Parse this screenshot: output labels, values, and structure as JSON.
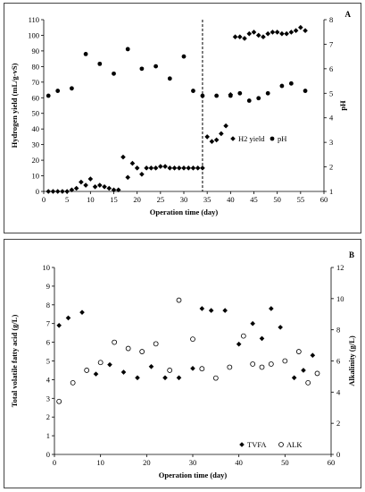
{
  "chart_data": [
    {
      "panel_label": "A",
      "type": "scatter",
      "xlabel": "Operation time (day)",
      "ylabel": "Hydrogen yield (mL/g-vS)",
      "y2label": "pH",
      "xlim": [
        0,
        60
      ],
      "ylim": [
        0,
        110
      ],
      "y2lim": [
        1,
        8
      ],
      "xticks": [
        "0",
        "5",
        "10",
        "15",
        "20",
        "25",
        "30",
        "35",
        "40",
        "45",
        "50",
        "55",
        "60"
      ],
      "yticks": [
        "0",
        "10",
        "20",
        "30",
        "40",
        "50",
        "60",
        "70",
        "80",
        "90",
        "100",
        "110"
      ],
      "y2ticks": [
        "1",
        "2",
        "3",
        "4",
        "5",
        "6",
        "7",
        "8"
      ],
      "vline_x": 34,
      "legend": [
        "H2 yield",
        "pH"
      ],
      "legend_position": "right-middle",
      "series": [
        {
          "name": "H2 yield",
          "axis": "left",
          "marker": "diamond-filled",
          "points": [
            [
              1,
              0
            ],
            [
              2,
              0
            ],
            [
              3,
              0
            ],
            [
              4,
              0
            ],
            [
              5,
              0
            ],
            [
              6,
              1
            ],
            [
              7,
              2
            ],
            [
              8,
              6
            ],
            [
              9,
              4
            ],
            [
              10,
              8
            ],
            [
              11,
              3
            ],
            [
              12,
              4
            ],
            [
              13,
              3
            ],
            [
              14,
              2
            ],
            [
              15,
              1
            ],
            [
              16,
              1
            ],
            [
              17,
              22
            ],
            [
              18,
              9
            ],
            [
              19,
              18
            ],
            [
              20,
              15
            ],
            [
              21,
              11
            ],
            [
              22,
              15
            ],
            [
              23,
              15
            ],
            [
              24,
              15
            ],
            [
              25,
              16
            ],
            [
              26,
              16
            ],
            [
              27,
              15
            ],
            [
              28,
              15
            ],
            [
              29,
              15
            ],
            [
              30,
              15
            ],
            [
              31,
              15
            ],
            [
              32,
              15
            ],
            [
              33,
              15
            ],
            [
              34,
              15
            ],
            [
              35,
              35
            ],
            [
              36,
              32
            ],
            [
              37,
              33
            ],
            [
              38,
              37
            ],
            [
              39,
              42
            ],
            [
              40,
              62
            ],
            [
              41,
              99
            ],
            [
              42,
              99
            ],
            [
              43,
              98
            ],
            [
              44,
              101
            ],
            [
              45,
              102
            ],
            [
              46,
              100
            ],
            [
              47,
              99
            ],
            [
              48,
              101
            ],
            [
              49,
              102
            ],
            [
              50,
              102
            ],
            [
              51,
              101
            ],
            [
              52,
              101
            ],
            [
              53,
              102
            ],
            [
              54,
              103
            ],
            [
              55,
              105
            ],
            [
              56,
              103
            ]
          ]
        },
        {
          "name": "pH",
          "axis": "right",
          "marker": "circle-filled",
          "points": [
            [
              1,
              4.9
            ],
            [
              3,
              5.1
            ],
            [
              6,
              5.2
            ],
            [
              9,
              6.6
            ],
            [
              12,
              6.2
            ],
            [
              15,
              5.8
            ],
            [
              18,
              6.8
            ],
            [
              21,
              6.0
            ],
            [
              24,
              6.1
            ],
            [
              27,
              5.6
            ],
            [
              30,
              6.5
            ],
            [
              32,
              5.1
            ],
            [
              34,
              4.9
            ],
            [
              37,
              4.9
            ],
            [
              40,
              4.9
            ],
            [
              42,
              5.0
            ],
            [
              44,
              4.7
            ],
            [
              46,
              4.8
            ],
            [
              48,
              5.0
            ],
            [
              51,
              5.3
            ],
            [
              53,
              5.4
            ],
            [
              56,
              5.1
            ]
          ]
        }
      ]
    },
    {
      "panel_label": "B",
      "type": "scatter",
      "xlabel": "Operation time (day)",
      "ylabel": "Total volatile fatty acid (g/L)",
      "y2label": "Alkalinity (g/L)",
      "xlim": [
        0,
        60
      ],
      "ylim": [
        0,
        10
      ],
      "y2lim": [
        0,
        12
      ],
      "xticks": [
        "0",
        "10",
        "20",
        "30",
        "40",
        "50",
        "60"
      ],
      "yticks": [
        "0",
        "1",
        "2",
        "3",
        "4",
        "5",
        "6",
        "7",
        "8",
        "9",
        "10"
      ],
      "y2ticks": [
        "0",
        "2",
        "4",
        "6",
        "8",
        "10",
        "12"
      ],
      "legend": [
        "TVFA",
        "ALK"
      ],
      "legend_position": "bottom-right",
      "series": [
        {
          "name": "TVFA",
          "axis": "left",
          "marker": "diamond-filled",
          "points": [
            [
              1,
              6.9
            ],
            [
              3,
              7.3
            ],
            [
              6,
              7.6
            ],
            [
              9,
              4.3
            ],
            [
              12,
              4.8
            ],
            [
              15,
              4.4
            ],
            [
              18,
              4.1
            ],
            [
              21,
              4.7
            ],
            [
              24,
              4.1
            ],
            [
              27,
              4.1
            ],
            [
              30,
              4.6
            ],
            [
              32,
              7.8
            ],
            [
              34,
              7.7
            ],
            [
              37,
              7.7
            ],
            [
              40,
              5.9
            ],
            [
              43,
              7.0
            ],
            [
              45,
              6.2
            ],
            [
              47,
              7.8
            ],
            [
              49,
              6.8
            ],
            [
              52,
              4.1
            ],
            [
              54,
              4.5
            ],
            [
              56,
              5.3
            ]
          ]
        },
        {
          "name": "ALK",
          "axis": "right",
          "marker": "circle-open",
          "points": [
            [
              1,
              3.4
            ],
            [
              4,
              4.6
            ],
            [
              7,
              5.4
            ],
            [
              10,
              5.9
            ],
            [
              13,
              7.2
            ],
            [
              16,
              6.8
            ],
            [
              19,
              6.6
            ],
            [
              22,
              7.1
            ],
            [
              25,
              5.4
            ],
            [
              27,
              9.9
            ],
            [
              30,
              7.4
            ],
            [
              32,
              5.5
            ],
            [
              35,
              4.9
            ],
            [
              38,
              5.6
            ],
            [
              41,
              7.6
            ],
            [
              43,
              5.8
            ],
            [
              45,
              5.6
            ],
            [
              47,
              5.8
            ],
            [
              50,
              6.0
            ],
            [
              53,
              6.6
            ],
            [
              55,
              4.6
            ],
            [
              57,
              5.2
            ]
          ]
        }
      ]
    }
  ]
}
